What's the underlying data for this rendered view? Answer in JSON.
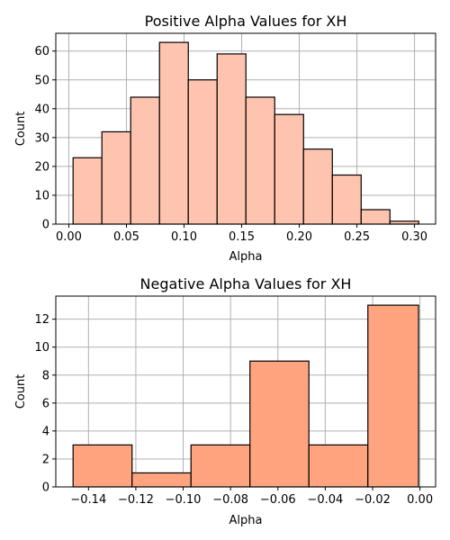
{
  "chart_data": [
    {
      "type": "bar",
      "title": "Positive Alpha Values for XH",
      "xlabel": "Alpha",
      "ylabel": "Count",
      "color": "#ffc4af",
      "grid": true,
      "xlim": [
        -0.0113,
        0.3183
      ],
      "ylim": [
        0,
        66.15
      ],
      "xticks": [
        0.0,
        0.05,
        0.1,
        0.15,
        0.2,
        0.25,
        0.3
      ],
      "xtick_labels": [
        "0.00",
        "0.05",
        "0.10",
        "0.15",
        "0.20",
        "0.25",
        "0.30"
      ],
      "yticks": [
        0,
        10,
        20,
        30,
        40,
        50,
        60
      ],
      "ytick_labels": [
        "0",
        "10",
        "20",
        "30",
        "40",
        "50",
        "60"
      ],
      "bins": [
        {
          "x0": 0.0037,
          "x1": 0.0287,
          "value": 23
        },
        {
          "x0": 0.0287,
          "x1": 0.0537,
          "value": 32
        },
        {
          "x0": 0.0537,
          "x1": 0.0787,
          "value": 44
        },
        {
          "x0": 0.0787,
          "x1": 0.1037,
          "value": 63
        },
        {
          "x0": 0.1037,
          "x1": 0.1287,
          "value": 50
        },
        {
          "x0": 0.1287,
          "x1": 0.1537,
          "value": 59
        },
        {
          "x0": 0.1537,
          "x1": 0.1787,
          "value": 44
        },
        {
          "x0": 0.1787,
          "x1": 0.2037,
          "value": 38
        },
        {
          "x0": 0.2037,
          "x1": 0.2287,
          "value": 26
        },
        {
          "x0": 0.2287,
          "x1": 0.2537,
          "value": 17
        },
        {
          "x0": 0.2537,
          "x1": 0.2787,
          "value": 5
        },
        {
          "x0": 0.2787,
          "x1": 0.3037,
          "value": 1
        }
      ]
    },
    {
      "type": "bar",
      "title": "Negative Alpha Values for XH",
      "xlabel": "Alpha",
      "ylabel": "Count",
      "color": "#ffa47f",
      "grid": true,
      "xlim": [
        -0.1538,
        0.0066
      ],
      "ylim": [
        0,
        13.65
      ],
      "xticks": [
        -0.14,
        -0.12,
        -0.1,
        -0.08,
        -0.06,
        -0.04,
        -0.02,
        0.0
      ],
      "xtick_labels": [
        "−0.14",
        "−0.12",
        "−0.10",
        "−0.08",
        "−0.06",
        "−0.04",
        "−0.02",
        "0.00"
      ],
      "yticks": [
        0,
        2,
        4,
        6,
        8,
        10,
        12
      ],
      "ytick_labels": [
        "0",
        "2",
        "4",
        "6",
        "8",
        "10",
        "12"
      ],
      "bins": [
        {
          "x0": -0.1465,
          "x1": -0.1216,
          "value": 3
        },
        {
          "x0": -0.1216,
          "x1": -0.0967,
          "value": 1
        },
        {
          "x0": -0.0967,
          "x1": -0.0718,
          "value": 3
        },
        {
          "x0": -0.0718,
          "x1": -0.0469,
          "value": 9
        },
        {
          "x0": -0.0469,
          "x1": -0.022,
          "value": 3
        },
        {
          "x0": -0.022,
          "x1": -0.0006,
          "value": 13
        }
      ]
    }
  ]
}
